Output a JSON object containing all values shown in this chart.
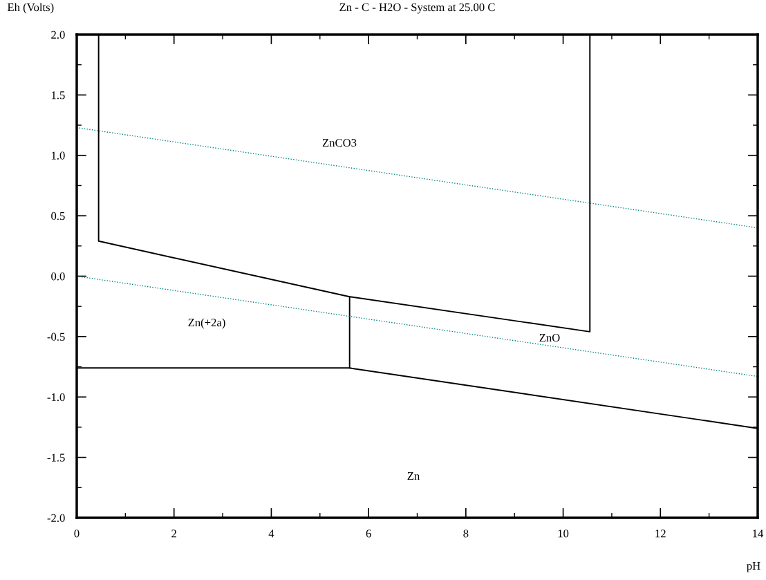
{
  "chart_data": {
    "type": "line",
    "title": "Zn - C - H2O - System at 25.00 C",
    "xlabel": "pH",
    "ylabel": "Eh (Volts)",
    "xlim": [
      0,
      14
    ],
    "ylim": [
      -2,
      2
    ],
    "xticks": [
      0,
      {
        "value": 1,
        "label": null
      },
      2,
      {
        "value": 3,
        "label": null
      },
      4,
      {
        "value": 5,
        "label": null
      },
      6,
      {
        "value": 7,
        "label": null
      },
      8,
      {
        "value": 9,
        "label": null
      },
      10,
      {
        "value": 11,
        "label": null
      },
      12,
      {
        "value": 13,
        "label": null
      },
      14
    ],
    "yticks": [
      {
        "value": -2,
        "label": "-2.0"
      },
      {
        "value": -1.75,
        "label": null
      },
      {
        "value": -1.5,
        "label": "-1.5"
      },
      {
        "value": -1.25,
        "label": null
      },
      {
        "value": -1,
        "label": "-1.0"
      },
      {
        "value": -0.75,
        "label": null
      },
      {
        "value": -0.5,
        "label": "-0.5"
      },
      {
        "value": -0.25,
        "label": null
      },
      {
        "value": 0,
        "label": "0.0"
      },
      {
        "value": 0.25,
        "label": null
      },
      {
        "value": 0.5,
        "label": "0.5"
      },
      {
        "value": 0.75,
        "label": null
      },
      {
        "value": 1,
        "label": "1.0"
      },
      {
        "value": 1.25,
        "label": null
      },
      {
        "value": 1.5,
        "label": "1.5"
      },
      {
        "value": 1.75,
        "label": null
      },
      {
        "value": 2,
        "label": "2.0"
      }
    ],
    "grid": false,
    "legend": false,
    "marker": "none",
    "series": [
      {
        "color": "#000000",
        "line_style": "solid",
        "x": [
          0.45,
          0.45,
          5.61,
          10.55,
          10.55
        ],
        "values": [
          2.0,
          0.29,
          -0.17,
          -0.46,
          2.0
        ]
      },
      {
        "color": "#000000",
        "line_style": "solid",
        "x": [
          5.61,
          5.61
        ],
        "values": [
          -0.17,
          -0.76
        ]
      },
      {
        "color": "#000000",
        "line_style": "solid",
        "x": [
          0,
          5.61,
          14
        ],
        "values": [
          -0.76,
          -0.76,
          -1.26
        ]
      },
      {
        "color": "#008080",
        "line_style": "dotted",
        "x": [
          0,
          14
        ],
        "values": [
          1.23,
          0.4
        ]
      },
      {
        "color": "#008080",
        "line_style": "dotted",
        "x": [
          0,
          14
        ],
        "values": [
          0.0,
          -0.83
        ]
      }
    ],
    "annotations": [
      "ZnCO3",
      "Zn(+2a)",
      "ZnO",
      "Zn"
    ]
  }
}
